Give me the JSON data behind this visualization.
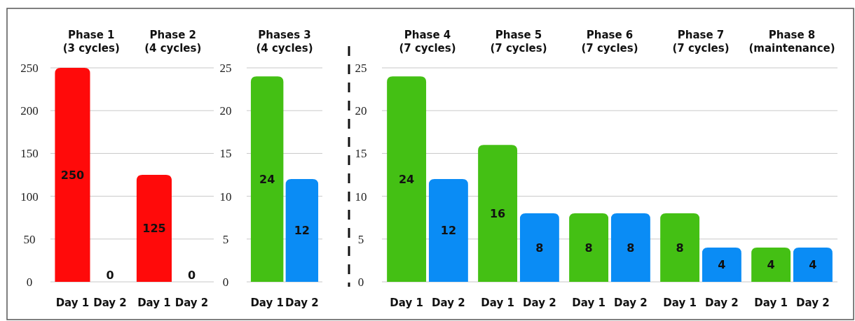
{
  "chart_data": [
    {
      "type": "bar",
      "categories": [
        "Day 1",
        "Day 2",
        "Day 1",
        "Day 2"
      ],
      "values": [
        250,
        0,
        125,
        0
      ],
      "colors": [
        "#ff0a0a",
        "#ff0a0a",
        "#ff0a0a",
        "#ff0a0a"
      ],
      "ylim": [
        0,
        250
      ],
      "yticks": [
        0,
        50,
        100,
        150,
        200,
        250
      ],
      "grid": "y",
      "data_labels": true,
      "annotations": [
        "Phase 1\n(3 cycles)",
        "Phase 2\n(4 cycles)"
      ]
    },
    {
      "type": "bar",
      "categories": [
        "Day 1",
        "Day 2"
      ],
      "values": [
        24,
        12
      ],
      "colors": [
        "#44c014",
        "#0a8cf5"
      ],
      "ylim": [
        0,
        25
      ],
      "yticks": [
        0,
        5,
        10,
        15,
        20,
        25
      ],
      "grid": "y",
      "data_labels": true,
      "annotations": [
        "Phases 3\n(4 cycles)"
      ]
    },
    {
      "type": "bar",
      "categories": [
        "Day 1",
        "Day 2",
        "Day 1",
        "Day 2",
        "Day 1",
        "Day 2",
        "Day 1",
        "Day 2",
        "Day 1",
        "Day 2"
      ],
      "values": [
        24,
        12,
        16,
        8,
        8,
        8,
        8,
        4,
        4,
        4
      ],
      "colors": [
        "#44c014",
        "#0a8cf5",
        "#44c014",
        "#0a8cf5",
        "#44c014",
        "#0a8cf5",
        "#44c014",
        "#0a8cf5",
        "#44c014",
        "#0a8cf5"
      ],
      "ylim": [
        0,
        25
      ],
      "yticks": [
        0,
        5,
        10,
        15,
        20,
        25
      ],
      "grid": "y",
      "data_labels": true,
      "annotations": [
        "Phase 4\n(7 cycles)",
        "Phase 5\n(7 cycles)",
        "Phase 6\n(7 cycles)",
        "Phase 7\n(7 cycles)",
        "Phase 8\n(maintenance)"
      ]
    }
  ]
}
